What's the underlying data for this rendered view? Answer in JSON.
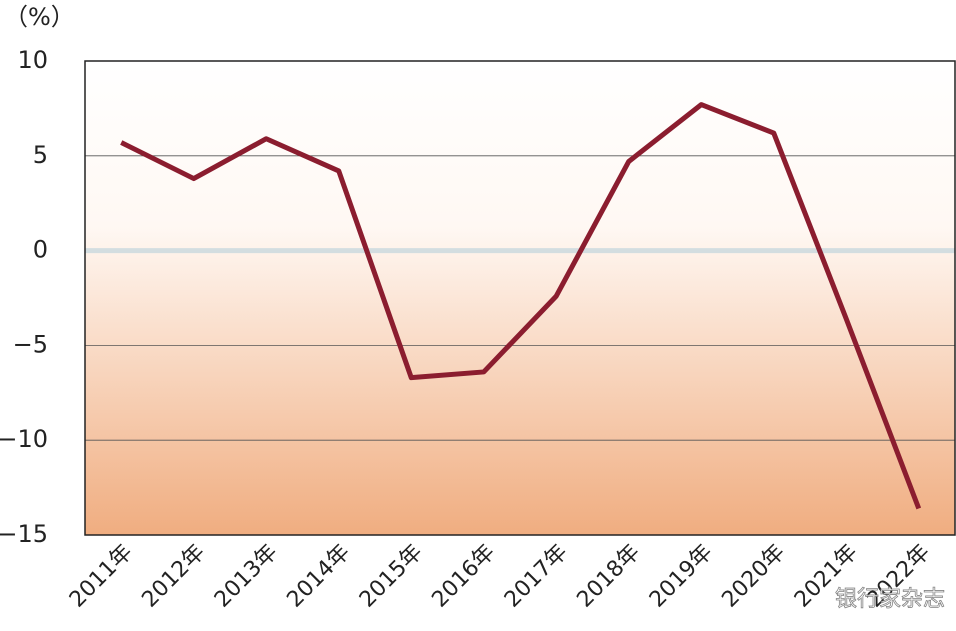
{
  "chart_data": {
    "type": "line",
    "y_label": "（%）",
    "categories": [
      "2011年",
      "2012年",
      "2013年",
      "2014年",
      "2015年",
      "2016年",
      "2017年",
      "2018年",
      "2019年",
      "2020年",
      "2021年",
      "2022年"
    ],
    "series": [
      {
        "color": "#8b1d2f",
        "values": [
          5.7,
          3.8,
          5.9,
          4.2,
          -6.7,
          -6.4,
          -2.4,
          4.7,
          7.7,
          6.2,
          -3.6,
          -13.6
        ]
      }
    ],
    "ylim": [
      -15,
      10
    ],
    "yticks": [
      10,
      5,
      0,
      {
        "value": -5,
        "label": "−5"
      },
      {
        "value": -10,
        "label": "−10"
      },
      {
        "value": -15,
        "label": "−15"
      }
    ],
    "grid": true,
    "watermark": "银行家杂志"
  }
}
